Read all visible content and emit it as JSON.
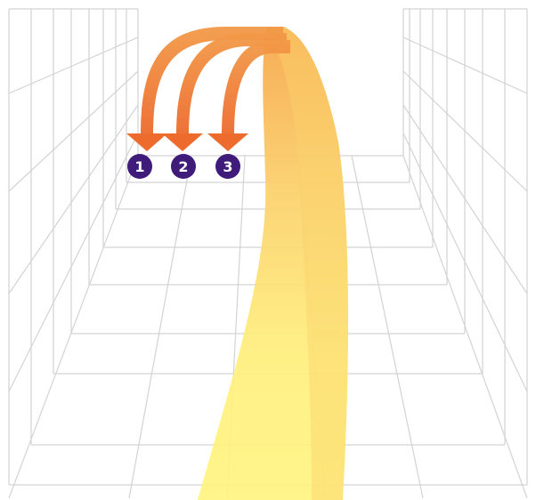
{
  "colors": {
    "background": "#ffffff",
    "grid": "#d3d3d3",
    "arrow_orange": "#ee7a32",
    "arrow_light_orange": "#f6a84a",
    "beam_yellow": "#fff27a",
    "beam_top": "#f7a846",
    "marker_fill": "#3f1b7a"
  },
  "markers": [
    {
      "label": "1"
    },
    {
      "label": "2"
    },
    {
      "label": "3"
    }
  ]
}
